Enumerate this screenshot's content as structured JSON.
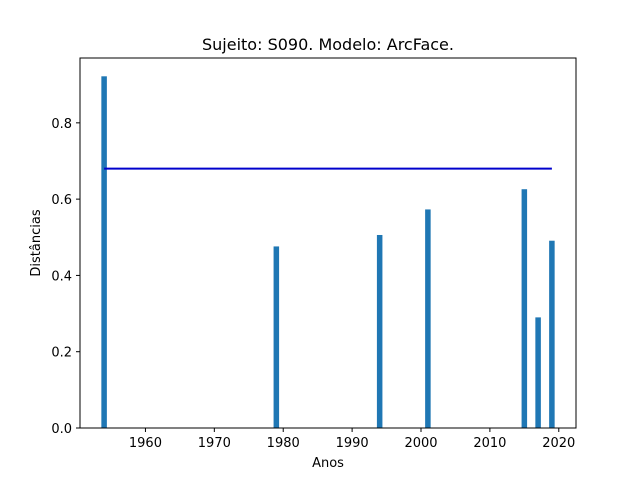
{
  "chart_data": {
    "type": "bar",
    "title": "Sujeito: S090. Modelo: ArcFace.",
    "xlabel": "Anos",
    "ylabel": "Distâncias",
    "xlim": [
      1950.5,
      2022.5
    ],
    "ylim": [
      0,
      0.97
    ],
    "xticks": [
      1960,
      1970,
      1980,
      1990,
      2000,
      2010,
      2020
    ],
    "yticks": [
      0.0,
      0.2,
      0.4,
      0.6,
      0.8
    ],
    "bar_width_years": 0.8,
    "bar_color": "#1f77b4",
    "x": [
      1954,
      1979,
      1994,
      2001,
      2015,
      2017,
      2019
    ],
    "values": [
      0.922,
      0.476,
      0.506,
      0.573,
      0.626,
      0.29,
      0.491
    ],
    "threshold": {
      "value": 0.68,
      "x_range": [
        1954,
        2019
      ],
      "color": "#0000cc"
    },
    "grid": false,
    "legend": "none"
  }
}
